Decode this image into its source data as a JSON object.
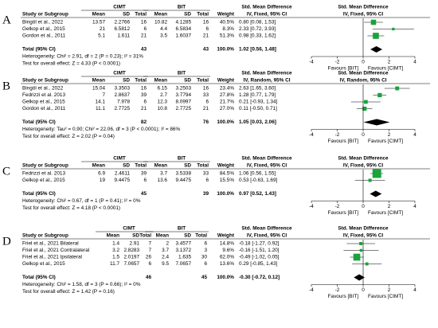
{
  "panels": [
    {
      "letter": "A",
      "group1": "CIMT",
      "group2": "BIT",
      "smd_title": "Std. Mean Difference",
      "study_header": "Study or Subgroup",
      "columns": [
        "Mean",
        "SD",
        "Total",
        "Mean",
        "SD",
        "Total"
      ],
      "weight_header": "Weight",
      "method": "IV, Fixed, 95% CI",
      "studies": [
        {
          "study": "Bingöl et al., 2022",
          "cells": [
            "13.57",
            "2.2766",
            "16",
            "10.82",
            "4.1285",
            "16"
          ],
          "weight": "40.5%",
          "ci": "0.80 [0.08, 1.53]",
          "smd": [
            0.8,
            0.08,
            1.53
          ],
          "weight_value": 40.5
        },
        {
          "study": "Gelkop et al., 2015",
          "cells": [
            "21",
            "6.5812",
            "6",
            "4.4",
            "6.5834",
            "6"
          ],
          "weight": "8.3%",
          "ci": "2.33 [0.72, 3.93]",
          "smd": [
            2.33,
            0.72,
            3.93
          ],
          "weight_value": 8.3
        },
        {
          "study": "Gordon et al., 2011",
          "cells": [
            "5.1",
            "1.611",
            "21",
            "3.5",
            "1.6037",
            "21"
          ],
          "weight": "51.3%",
          "ci": "0.98 [0.33, 1.62]",
          "smd": [
            0.98,
            0.33,
            1.62
          ],
          "weight_value": 51.3
        }
      ],
      "total": {
        "label": "Total (95% CI)",
        "n1": "43",
        "n2": "43",
        "weight": "100.0%",
        "ci": "1.02 [0.56, 1.48]",
        "smd": [
          1.02,
          0.56,
          1.48
        ]
      },
      "heterogeneity": "Heterogeneity: Chi² = 2.91, df = 2 (P = 0.23); I² = 31%",
      "overall": "Test for overall effect: Z = 4.33 (P < 0.0001)",
      "xlim": [
        -4,
        4
      ],
      "xticks": [
        -4,
        -2,
        0,
        2,
        4
      ],
      "favours": [
        "Favours [BIT]",
        "Favours [CIMT]"
      ]
    },
    {
      "letter": "B",
      "group1": "CIMT",
      "group2": "BIT",
      "smd_title": "Std. Mean Difference",
      "study_header": "Study or Subgroup",
      "columns": [
        "Mean",
        "SD",
        "Total",
        "Mean",
        "SD",
        "Total"
      ],
      "weight_header": "Weight",
      "method": "IV, Random, 95% CI",
      "studies": [
        {
          "study": "Bingöl et al., 2022",
          "cells": [
            "15.04",
            "3.3503",
            "16",
            "6.15",
            "3.2503",
            "16"
          ],
          "weight": "23.4%",
          "ci": "2.63 [1.65, 3.60]",
          "smd": [
            2.63,
            1.65,
            3.6
          ],
          "weight_value": 23.4
        },
        {
          "study": "Fedrizzi et al. 2013",
          "cells": [
            "7",
            "2.8637",
            "39",
            "2.7",
            "3.7794",
            "33"
          ],
          "weight": "27.8%",
          "ci": "1.28 [0.77, 1.79]",
          "smd": [
            1.28,
            0.77,
            1.79
          ],
          "weight_value": 27.8
        },
        {
          "study": "Gelkop et al., 2015",
          "cells": [
            "14.1",
            "7.978",
            "6",
            "12.3",
            "8.0997",
            "6"
          ],
          "weight": "21.7%",
          "ci": "0.21 [-0.93, 1.34]",
          "smd": [
            0.21,
            -0.93,
            1.34
          ],
          "weight_value": 21.7
        },
        {
          "study": "Gordon et al., 2011",
          "cells": [
            "11.1",
            "2.7725",
            "21",
            "10.8",
            "2.7725",
            "21"
          ],
          "weight": "27.0%",
          "ci": "0.11 [-0.50, 0.71]",
          "smd": [
            0.11,
            -0.5,
            0.71
          ],
          "weight_value": 27.0
        }
      ],
      "total": {
        "label": "Total (95% CI)",
        "n1": "82",
        "n2": "76",
        "weight": "100.0%",
        "ci": "1.05 [0.03, 2.06]",
        "smd": [
          1.05,
          0.03,
          2.06
        ]
      },
      "heterogeneity": "Heterogeneity: Tau² = 0.90; Chi² = 22.06, df = 3 (P < 0.0001); I² = 86%",
      "overall": "Test for overall effect: Z = 2.02 (P = 0.04)",
      "xlim": [
        -4,
        4
      ],
      "xticks": [
        -4,
        -2,
        0,
        2,
        4
      ],
      "favours": [
        "Favours [BIT]",
        "Favours [CIMT]"
      ]
    },
    {
      "letter": "C",
      "group1": "CIMT",
      "group2": "BIT",
      "smd_title": "Std. Mean Difference",
      "study_header": "Study or Subgroup",
      "columns": [
        "Mean",
        "SD",
        "Total",
        "Mean",
        "SD",
        "Total"
      ],
      "weight_header": "Weight",
      "method": "IV, Fixed, 95% CI",
      "studies": [
        {
          "study": "Fedrizzi et al. 2013",
          "cells": [
            "6.9",
            "2.4611",
            "39",
            "3.7",
            "3.5338",
            "33"
          ],
          "weight": "84.5%",
          "ci": "1.06 [0.56, 1.55]",
          "smd": [
            1.06,
            0.56,
            1.55
          ],
          "weight_value": 84.5
        },
        {
          "study": "Gelkop et al., 2015",
          "cells": [
            "19",
            "9.4475",
            "6",
            "13.6",
            "9.4475",
            "6"
          ],
          "weight": "15.5%",
          "ci": "0.53 [-0.63, 1.69]",
          "smd": [
            0.53,
            -0.63,
            1.69
          ],
          "weight_value": 15.5
        }
      ],
      "total": {
        "label": "Total (95% CI)",
        "n1": "45",
        "n2": "39",
        "weight": "100.0%",
        "ci": "0.97 [0.52, 1.43]",
        "smd": [
          0.97,
          0.52,
          1.43
        ]
      },
      "heterogeneity": "Heterogeneity: Chi² = 0.67, df = 1 (P = 0.41); I² = 0%",
      "overall": "Test for overall effect: Z = 4.18 (P < 0.0001)",
      "xlim": [
        -4,
        4
      ],
      "xticks": [
        -4,
        -2,
        0,
        2,
        4
      ],
      "favours": [
        "Favours [BIT]",
        "Favours [CIMT]"
      ]
    },
    {
      "letter": "D",
      "group1": "CIMT",
      "group2": "BIT",
      "smd_title": "Std. Mean Difference",
      "study_header": "Study or Subgroup",
      "columns": [
        "Mean",
        "SD",
        "Total",
        "Mean",
        "SD",
        "Total"
      ],
      "weight_header": "Weight",
      "method": "IV, Fixed, 95% CI",
      "studies": [
        {
          "study": "Friel et al., 2021 Bilateral",
          "cells": [
            "1.4",
            "2.91",
            "7",
            "2",
            "3.4577",
            "6"
          ],
          "weight": "14.8%",
          "ci": "-0.18 [-1.27, 0.92]",
          "smd": [
            -0.18,
            -1.27,
            0.92
          ],
          "weight_value": 14.8
        },
        {
          "study": "Friel et al., 2021 Contralateral",
          "cells": [
            "3.2",
            "2.8283",
            "7",
            "3.7",
            "3.1372",
            "3"
          ],
          "weight": "9.6%",
          "ci": "-0.16 [-1.51, 1.20]",
          "smd": [
            -0.16,
            -1.51,
            1.2
          ],
          "weight_value": 9.6
        },
        {
          "study": "Friel et al., 2021 Ipsilateral",
          "cells": [
            "1.5",
            "2.0197",
            "26",
            "2.4",
            "1.635",
            "30"
          ],
          "weight": "62.0%",
          "ci": "-0.49 [-1.02, 0.05]",
          "smd": [
            -0.49,
            -1.02,
            0.05
          ],
          "weight_value": 62.0
        },
        {
          "study": "Gelkop et al., 2015",
          "cells": [
            "11.7",
            "7.0657",
            "6",
            "9.5",
            "7.0657",
            "6"
          ],
          "weight": "13.6%",
          "ci": "0.29 [-0.85, 1.43]",
          "smd": [
            0.29,
            -0.85,
            1.43
          ],
          "weight_value": 13.6
        }
      ],
      "total": {
        "label": "Total (95% CI)",
        "n1": "46",
        "n2": "45",
        "weight": "100.0%",
        "ci": "-0.30 [-0.72, 0.12]",
        "smd": [
          -0.3,
          -0.72,
          0.12
        ]
      },
      "heterogeneity": "Heterogeneity: Chi² = 1.58, df = 3 (P = 0.66); I² = 0%",
      "overall": "Test for overall effect: Z = 1.42 (P = 0.16)",
      "xlim": [
        -4,
        4
      ],
      "xticks": [
        -4,
        -2,
        0,
        2,
        4
      ],
      "favours": [
        "Favours [BIT]",
        "Favours [CIMT]"
      ]
    }
  ]
}
